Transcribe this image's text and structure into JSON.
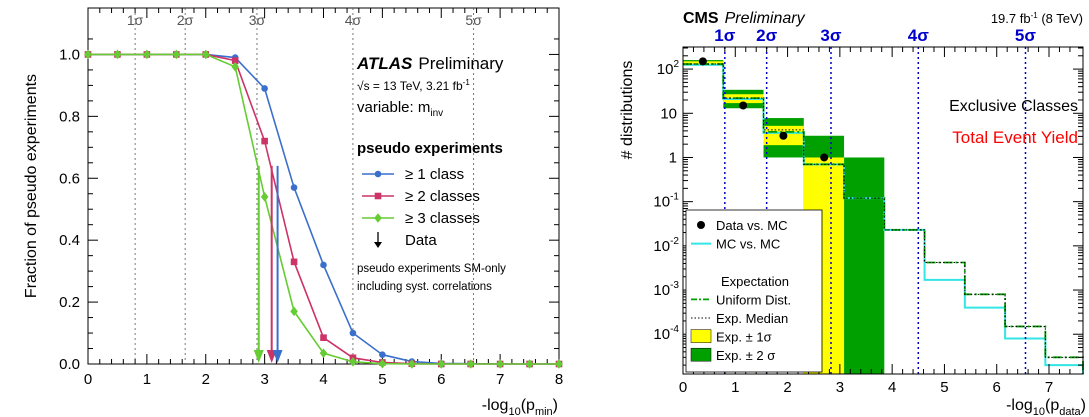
{
  "chart_data": [
    {
      "type": "line",
      "title": "",
      "label_brand": "ATLAS",
      "label_status": "Preliminary",
      "energy_text": "√s = 13 TeV, 3.21 fb",
      "energy_sup": "-1",
      "variable_text": "variable: m",
      "variable_sub": "inv",
      "legend_title": "pseudo experiments",
      "note_line1": "pseudo experiments SM-only",
      "note_line2": "including syst. correlations",
      "xlabel_main": "-log",
      "xlabel_sub": "10",
      "xlabel_arg": "(p",
      "xlabel_arg_sub": "min",
      "xlabel_close": ")",
      "ylabel": "Fraction of pseudo experiments",
      "xlim": [
        0,
        8
      ],
      "ylim": [
        0,
        1.15
      ],
      "xticks": [
        "0",
        "1",
        "2",
        "3",
        "4",
        "5",
        "6",
        "7",
        "8"
      ],
      "yticks": [
        "0.0",
        "0.2",
        "0.4",
        "0.6",
        "0.8",
        "1.0"
      ],
      "sigma_lines": [
        {
          "label": "1σ",
          "x": 0.8
        },
        {
          "label": "2σ",
          "x": 1.65
        },
        {
          "label": "3σ",
          "x": 2.87
        },
        {
          "label": "4σ",
          "x": 4.5
        },
        {
          "label": "5σ",
          "x": 6.55
        }
      ],
      "x": [
        0,
        0.5,
        1.0,
        1.5,
        2.0,
        2.5,
        3.0,
        3.5,
        4.0,
        4.5,
        5.0,
        5.5,
        6.0,
        6.5,
        7.0,
        7.5,
        8.0
      ],
      "series": [
        {
          "name": "≥ 1 class",
          "color": "#3a6fcc",
          "marker": "circle",
          "values": [
            1.0,
            1.0,
            1.0,
            1.0,
            1.0,
            0.99,
            0.89,
            0.57,
            0.32,
            0.1,
            0.03,
            0.008,
            0.002,
            0.001,
            0.0,
            0.0,
            0.0
          ]
        },
        {
          "name": "≥ 2 classes",
          "color": "#cc3366",
          "marker": "square",
          "values": [
            1.0,
            1.0,
            1.0,
            1.0,
            1.0,
            0.98,
            0.72,
            0.33,
            0.085,
            0.02,
            0.005,
            0.001,
            0.0,
            0.0,
            0.0,
            0.0,
            0.0
          ]
        },
        {
          "name": "≥ 3 classes",
          "color": "#66cc33",
          "marker": "diamond",
          "values": [
            1.0,
            1.0,
            1.0,
            1.0,
            1.0,
            0.96,
            0.54,
            0.17,
            0.035,
            0.007,
            0.001,
            0.0,
            0.0,
            0.0,
            0.0,
            0.0,
            0.0
          ]
        }
      ],
      "data_label": "Data",
      "data_arrows": [
        {
          "x": 2.9,
          "color": "#66cc33"
        },
        {
          "x": 3.12,
          "color": "#cc3366"
        },
        {
          "x": 3.22,
          "color": "#3a6fcc"
        }
      ]
    },
    {
      "type": "bar",
      "title": "",
      "label_brand": "CMS",
      "label_status": "Preliminary",
      "lumi_text": "19.7 fb",
      "lumi_sup": "-1",
      "lumi_tail": " (8 TeV)",
      "text_classes": "Exclusive Classes",
      "text_yield": "Total Event Yield",
      "ylabel": "# distributions",
      "xlabel_main": "-log",
      "xlabel_sub": "10",
      "xlabel_arg": "(p",
      "xlabel_arg_sub": "data",
      "xlabel_close": ")",
      "xlim": [
        0,
        7.65
      ],
      "ylim_log10": [
        -4.9,
        2.5
      ],
      "xticks": [
        "0",
        "1",
        "2",
        "3",
        "4",
        "5",
        "6",
        "7"
      ],
      "yticks": [
        {
          "base": "10",
          "exp": "2"
        },
        {
          "base": "10",
          "exp": ""
        },
        {
          "base": "1",
          "exp": ""
        },
        {
          "base": "10",
          "exp": "-1"
        },
        {
          "base": "10",
          "exp": "-2"
        },
        {
          "base": "10",
          "exp": "-3"
        },
        {
          "base": "10",
          "exp": "-4"
        }
      ],
      "sigma_lines": [
        {
          "label": "1σ",
          "x": 0.8
        },
        {
          "label": "2σ",
          "x": 1.6
        },
        {
          "label": "3σ",
          "x": 2.83
        },
        {
          "label": "4σ",
          "x": 4.5
        },
        {
          "label": "5σ",
          "x": 6.55
        }
      ],
      "bin_edges": [
        0,
        0.77,
        1.54,
        2.31,
        3.08,
        3.85,
        4.62,
        5.39,
        6.16,
        6.93,
        7.65
      ],
      "band_2sigma": [
        [
          120,
          160
        ],
        [
          13,
          34
        ],
        [
          1.0,
          7.8
        ],
        [
          0,
          3.1
        ],
        [
          0,
          1.0
        ],
        [
          0,
          0
        ],
        [
          0,
          0
        ],
        [
          0,
          0
        ],
        [
          0,
          0
        ],
        [
          0,
          0
        ]
      ],
      "band_1sigma": [
        [
          125,
          150
        ],
        [
          17,
          27
        ],
        [
          1.9,
          5.2
        ],
        [
          0,
          1.0
        ],
        [
          0,
          0
        ],
        [
          0,
          0
        ],
        [
          0,
          0
        ],
        [
          0,
          0
        ],
        [
          0,
          0
        ],
        [
          0,
          0
        ]
      ],
      "uniform_dist": [
        130,
        22,
        3.8,
        0.7,
        0.12,
        0.023,
        0.0042,
        0.0008,
        0.00015,
        3e-05
      ],
      "mc_vs_mc": [
        125,
        21,
        3.6,
        0.7,
        0.12,
        0.023,
        0.0017,
        0.0004,
        8e-05,
        2e-05
      ],
      "exp_median": [
        130,
        22,
        4.2,
        0.7,
        0.12,
        0.023,
        0.0042,
        0.0008,
        0.00015,
        3e-05
      ],
      "data_points": [
        {
          "x": 0.38,
          "y": 150
        },
        {
          "x": 1.15,
          "y": 15
        },
        {
          "x": 1.92,
          "y": 3.1
        },
        {
          "x": 2.7,
          "y": 1.0
        }
      ],
      "legend": [
        {
          "label": "Data vs. MC",
          "kind": "dot"
        },
        {
          "label": "MC vs. MC",
          "kind": "cyan"
        },
        {
          "label": "",
          "kind": "blank"
        },
        {
          "label": "Expectation",
          "kind": "header"
        },
        {
          "label": "Uniform Dist.",
          "kind": "dashgreen"
        },
        {
          "label": "Exp. Median",
          "kind": "dotted"
        },
        {
          "label": "Exp. ± 1σ",
          "kind": "yellow"
        },
        {
          "label": "Exp. ± 2 σ",
          "kind": "green"
        }
      ],
      "colors": {
        "band1": "#ffff00",
        "band2": "#00a000",
        "cyan": "#33e5e5",
        "uniform": "#00a000",
        "sigma": "#0000cc",
        "yield": "#ff0000"
      }
    }
  ]
}
